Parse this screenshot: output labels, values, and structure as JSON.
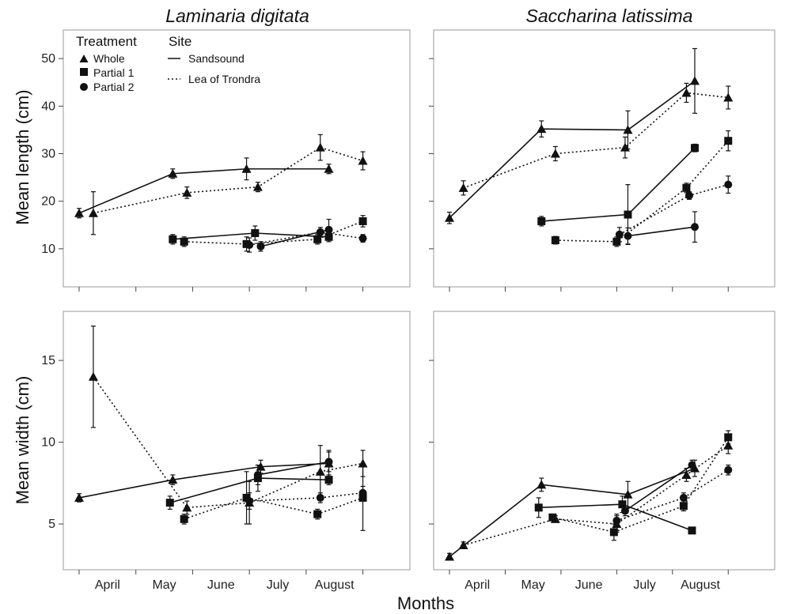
{
  "figure": {
    "xlabel": "Months",
    "ylabels": {
      "length": "Mean length (cm)",
      "width": "Mean width (cm)"
    },
    "legend": {
      "treatment_title": "Treatment",
      "site_title": "Site",
      "treatments": [
        {
          "label": "Whole",
          "marker": "triangle"
        },
        {
          "label": "Partial 1",
          "marker": "square"
        },
        {
          "label": "Partial 2",
          "marker": "circle"
        }
      ],
      "sites": [
        {
          "label": "Sandsound",
          "dash": "solid"
        },
        {
          "label": "Lea of Trondra",
          "dash": "dotted"
        }
      ],
      "placement": "top-left of top-left panel"
    },
    "month_labels": [
      "April",
      "May",
      "June",
      "July",
      "August"
    ],
    "colors": {
      "ink": "#111111",
      "frame": "#9a9a9a"
    }
  },
  "chart_data": [
    {
      "id": "ld-length",
      "type": "line",
      "title": "Laminaria digitata",
      "ylabel": "Mean length (cm)",
      "ylim": [
        2,
        56
      ],
      "yticks": [
        10,
        20,
        30,
        40,
        50
      ],
      "xlim": [
        0.0,
        5.55
      ],
      "series": [
        {
          "treatment": "Whole",
          "site": "Sandsound",
          "x": [
            0.0,
            1.65,
            2.95,
            4.4
          ],
          "y": [
            17.5,
            25.8,
            26.8,
            26.8
          ],
          "err": [
            1.0,
            1.0,
            2.3,
            1.0
          ]
        },
        {
          "treatment": "Whole",
          "site": "Lea of Trondra",
          "x": [
            0.25,
            1.9,
            3.15,
            4.25,
            5.0
          ],
          "y": [
            17.5,
            21.8,
            23.0,
            31.3,
            28.5
          ],
          "err": [
            4.5,
            1.2,
            1.0,
            2.7,
            1.9
          ]
        },
        {
          "treatment": "Partial 1",
          "site": "Sandsound",
          "x": [
            1.65,
            3.1,
            4.4
          ],
          "y": [
            12.0,
            13.3,
            12.5
          ],
          "err": [
            1.0,
            1.5,
            1.0
          ]
        },
        {
          "treatment": "Partial 1",
          "site": "Lea of Trondra",
          "x": [
            1.85,
            2.95,
            4.2,
            5.0
          ],
          "y": [
            11.5,
            11.0,
            12.0,
            15.8
          ],
          "err": [
            1.0,
            1.5,
            1.0,
            1.2
          ]
        },
        {
          "treatment": "Partial 2",
          "site": "Sandsound",
          "x": [
            3.2,
            4.4
          ],
          "y": [
            10.5,
            14.0
          ],
          "err": [
            1.0,
            2.2
          ]
        },
        {
          "treatment": "Partial 2",
          "site": "Lea of Trondra",
          "x": [
            3.0,
            4.25,
            5.0
          ],
          "y": [
            10.8,
            13.5,
            12.2
          ],
          "err": [
            1.5,
            1.0,
            0.8
          ]
        }
      ]
    },
    {
      "id": "sl-length",
      "type": "line",
      "title": "Saccharina latissima",
      "ylabel": "Mean length (cm)",
      "ylim": [
        2,
        56
      ],
      "yticks": [
        10,
        20,
        30,
        40,
        50
      ],
      "xlim": [
        0.0,
        5.55
      ],
      "series": [
        {
          "treatment": "Whole",
          "site": "Sandsound",
          "x": [
            0.0,
            1.65,
            3.2,
            4.4
          ],
          "y": [
            16.5,
            35.2,
            35.0,
            45.3
          ],
          "err": [
            1.2,
            1.7,
            4.0,
            6.8
          ]
        },
        {
          "treatment": "Whole",
          "site": "Lea of Trondra",
          "x": [
            0.25,
            1.9,
            3.15,
            4.25,
            5.0
          ],
          "y": [
            22.8,
            30.0,
            31.3,
            42.8,
            41.8
          ],
          "err": [
            1.5,
            1.5,
            2.2,
            2.0,
            2.4
          ]
        },
        {
          "treatment": "Partial 1",
          "site": "Sandsound",
          "x": [
            1.65,
            3.2,
            4.4
          ],
          "y": [
            15.8,
            17.2,
            31.2
          ],
          "err": [
            1.0,
            6.3,
            0.8
          ]
        },
        {
          "treatment": "Partial 1",
          "site": "Lea of Trondra",
          "x": [
            1.9,
            3.0,
            4.25,
            5.0
          ],
          "y": [
            11.8,
            11.5,
            22.8,
            32.7
          ],
          "err": [
            0.8,
            1.0,
            1.0,
            2.1
          ]
        },
        {
          "treatment": "Partial 2",
          "site": "Sandsound",
          "x": [
            3.2,
            4.4
          ],
          "y": [
            12.7,
            14.6
          ],
          "err": [
            1.7,
            3.2
          ]
        },
        {
          "treatment": "Partial 2",
          "site": "Lea of Trondra",
          "x": [
            3.05,
            4.3,
            5.0
          ],
          "y": [
            13.0,
            21.2,
            23.5
          ],
          "err": [
            1.5,
            0.8,
            1.8
          ]
        }
      ]
    },
    {
      "id": "ld-width",
      "type": "line",
      "title": "",
      "ylabel": "Mean width (cm)",
      "ylim": [
        2.2,
        18.0
      ],
      "yticks": [
        5,
        10,
        15
      ],
      "xlim": [
        0.0,
        5.55
      ],
      "series": [
        {
          "treatment": "Whole",
          "site": "Sandsound",
          "x": [
            0.0,
            1.65,
            3.2,
            4.4
          ],
          "y": [
            6.6,
            7.7,
            8.5,
            8.7
          ],
          "err": [
            0.25,
            0.3,
            0.4,
            0.8
          ]
        },
        {
          "treatment": "Whole",
          "site": "Lea of Trondra",
          "x": [
            0.25,
            1.9,
            3.0,
            4.25,
            5.0
          ],
          "y": [
            14.0,
            6.0,
            6.3,
            8.2,
            8.7
          ],
          "err": [
            3.1,
            0.4,
            1.3,
            1.6,
            0.8
          ]
        },
        {
          "treatment": "Partial 1",
          "site": "Sandsound",
          "x": [
            1.6,
            3.15,
            4.4
          ],
          "y": [
            6.3,
            7.8,
            7.7
          ],
          "err": [
            0.4,
            0.8,
            0.3
          ]
        },
        {
          "treatment": "Partial 1",
          "site": "Lea of Trondra",
          "x": [
            1.85,
            2.95,
            4.2,
            5.0
          ],
          "y": [
            5.3,
            6.6,
            5.6,
            6.6
          ],
          "err": [
            0.3,
            1.6,
            0.3,
            2.0
          ]
        },
        {
          "treatment": "Partial 2",
          "site": "Sandsound",
          "x": [
            3.15,
            4.4
          ],
          "y": [
            8.0,
            8.8
          ],
          "err": [
            0.6,
            0.6
          ]
        },
        {
          "treatment": "Partial 2",
          "site": "Lea of Trondra",
          "x": [
            3.0,
            4.25,
            5.0
          ],
          "y": [
            6.4,
            6.6,
            6.9
          ],
          "err": [
            0.5,
            0.3,
            0.4
          ]
        }
      ]
    },
    {
      "id": "sl-width",
      "type": "line",
      "title": "",
      "ylabel": "Mean width (cm)",
      "ylim": [
        2.2,
        18.0
      ],
      "yticks": [
        5,
        10,
        15
      ],
      "xlim": [
        0.0,
        5.55
      ],
      "series": [
        {
          "treatment": "Whole",
          "site": "Sandsound",
          "x": [
            0.0,
            1.65,
            3.2,
            4.4
          ],
          "y": [
            3.0,
            7.4,
            6.8,
            8.4
          ],
          "err": [
            0.2,
            0.4,
            0.8,
            0.5
          ]
        },
        {
          "treatment": "Whole",
          "site": "Lea of Trondra",
          "x": [
            0.25,
            1.9,
            3.0,
            4.25,
            5.0
          ],
          "y": [
            3.7,
            5.3,
            5.0,
            8.0,
            9.8
          ],
          "err": [
            0.2,
            0.2,
            0.5,
            0.4,
            0.5
          ]
        },
        {
          "treatment": "Partial 1",
          "site": "Sandsound",
          "x": [
            1.6,
            3.1,
            4.35
          ],
          "y": [
            6.0,
            6.2,
            4.6
          ],
          "err": [
            0.6,
            0.5,
            0.2
          ]
        },
        {
          "treatment": "Partial 1",
          "site": "Lea of Trondra",
          "x": [
            1.85,
            2.95,
            4.2,
            5.0
          ],
          "y": [
            5.4,
            4.5,
            6.1,
            10.3
          ],
          "err": [
            0.2,
            0.5,
            0.3,
            0.4
          ]
        },
        {
          "treatment": "Partial 2",
          "site": "Sandsound",
          "x": [
            3.15,
            4.35
          ],
          "y": [
            5.8,
            8.6
          ],
          "err": [
            0.3,
            0.3
          ]
        },
        {
          "treatment": "Partial 2",
          "site": "Lea of Trondra",
          "x": [
            3.0,
            4.2,
            5.0
          ],
          "y": [
            5.2,
            6.6,
            8.3
          ],
          "err": [
            0.4,
            0.3,
            0.3
          ]
        }
      ]
    }
  ]
}
